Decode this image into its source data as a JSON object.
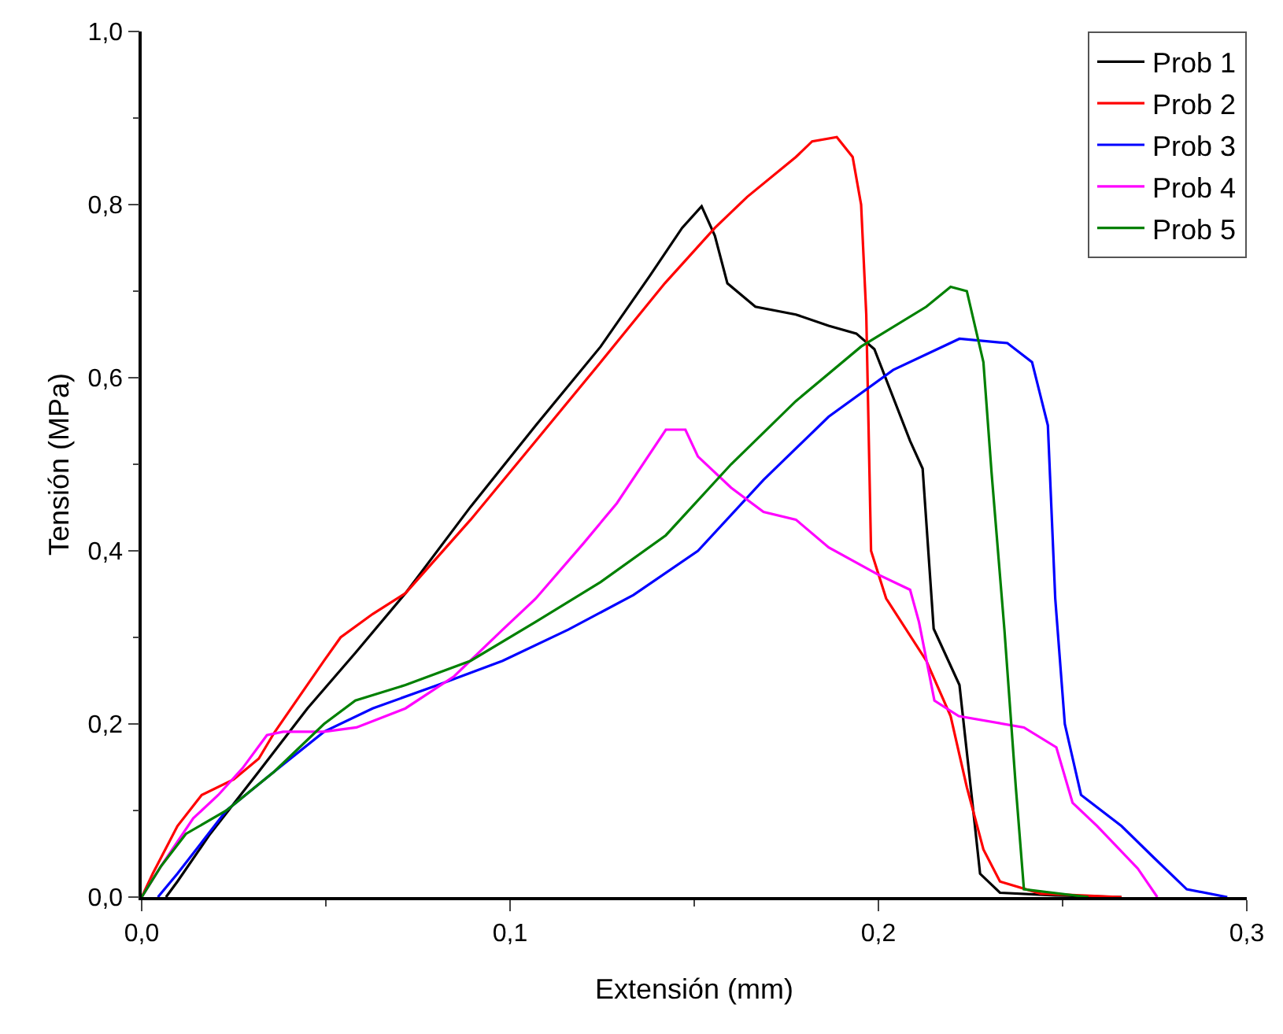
{
  "chart_data": {
    "type": "line",
    "xlabel": "Extensión (mm)",
    "ylabel": "Tensión (MPa)",
    "xlim": [
      0,
      0.3
    ],
    "ylim": [
      0,
      1
    ],
    "xticks": [
      {
        "value": 0,
        "label": "0,0"
      },
      {
        "value": 0.1,
        "label": "0,1"
      },
      {
        "value": 0.2,
        "label": "0,2"
      },
      {
        "value": 0.3,
        "label": "0,3"
      }
    ],
    "yticks": [
      {
        "value": 0,
        "label": "0,0"
      },
      {
        "value": 0.2,
        "label": "0,2"
      },
      {
        "value": 0.4,
        "label": "0,4"
      },
      {
        "value": 0.6,
        "label": "0,6"
      },
      {
        "value": 0.8,
        "label": "0,8"
      },
      {
        "value": 1,
        "label": "1,0"
      }
    ],
    "grid": false,
    "legend": "top right",
    "marker": "none",
    "line_style": "solid",
    "series": [
      {
        "name": "Prob 1",
        "color": "#000000",
        "x": [
          0.0066,
          0.0097,
          0.0186,
          0.0318,
          0.045,
          0.058,
          0.0716,
          0.0893,
          0.107,
          0.1246,
          0.138,
          0.1467,
          0.152,
          0.1556,
          0.159,
          0.1666,
          0.1776,
          0.1865,
          0.194,
          0.1989,
          0.2086,
          0.212,
          0.215,
          0.222,
          0.226,
          0.2276,
          0.233,
          0.248,
          0.266
        ],
        "values": [
          0,
          0.018,
          0.073,
          0.145,
          0.218,
          0.282,
          0.351,
          0.451,
          0.545,
          0.636,
          0.718,
          0.773,
          0.798,
          0.764,
          0.709,
          0.682,
          0.673,
          0.66,
          0.651,
          0.633,
          0.527,
          0.495,
          0.31,
          0.245,
          0.09,
          0.027,
          0.005,
          0.002,
          0
        ]
      },
      {
        "name": "Prob 2",
        "color": "#ff0000",
        "x": [
          0,
          0.003,
          0.0097,
          0.0163,
          0.025,
          0.0318,
          0.036,
          0.0495,
          0.054,
          0.0627,
          0.0716,
          0.0893,
          0.107,
          0.1246,
          0.142,
          0.1556,
          0.1644,
          0.1776,
          0.182,
          0.1887,
          0.193,
          0.1953,
          0.1967,
          0.198,
          0.2021,
          0.213,
          0.2196,
          0.224,
          0.2285,
          0.233,
          0.244,
          0.266
        ],
        "values": [
          0,
          0.027,
          0.082,
          0.118,
          0.136,
          0.16,
          0.19,
          0.273,
          0.3,
          0.327,
          0.351,
          0.436,
          0.527,
          0.618,
          0.709,
          0.773,
          0.809,
          0.855,
          0.873,
          0.878,
          0.855,
          0.8,
          0.673,
          0.4,
          0.345,
          0.273,
          0.209,
          0.127,
          0.055,
          0.018,
          0.004,
          0
        ]
      },
      {
        "name": "Prob 3",
        "color": "#0000ff",
        "x": [
          0.0044,
          0.0097,
          0.023,
          0.036,
          0.0495,
          0.0627,
          0.0804,
          0.098,
          0.1158,
          0.1335,
          0.151,
          0.1688,
          0.1865,
          0.204,
          0.222,
          0.235,
          0.2417,
          0.246,
          0.248,
          0.2506,
          0.255,
          0.266,
          0.2749,
          0.2837,
          0.2947
        ],
        "values": [
          0,
          0.027,
          0.1,
          0.145,
          0.191,
          0.218,
          0.245,
          0.273,
          0.309,
          0.349,
          0.4,
          0.482,
          0.555,
          0.609,
          0.645,
          0.64,
          0.618,
          0.545,
          0.345,
          0.2,
          0.118,
          0.082,
          0.045,
          0.009,
          0
        ]
      },
      {
        "name": "Prob 4",
        "color": "#ff00ff",
        "x": [
          0,
          0.0053,
          0.014,
          0.0208,
          0.0274,
          0.034,
          0.0384,
          0.0495,
          0.0583,
          0.0716,
          0.0848,
          0.098,
          0.107,
          0.12,
          0.129,
          0.1423,
          0.1476,
          0.151,
          0.16,
          0.1688,
          0.1776,
          0.1865,
          0.1997,
          0.2086,
          0.211,
          0.2152,
          0.2218,
          0.2395,
          0.2483,
          0.2527,
          0.2594,
          0.2704,
          0.2757
        ],
        "values": [
          0,
          0.036,
          0.091,
          0.118,
          0.149,
          0.187,
          0.191,
          0.191,
          0.196,
          0.218,
          0.255,
          0.309,
          0.345,
          0.409,
          0.455,
          0.54,
          0.54,
          0.509,
          0.473,
          0.445,
          0.436,
          0.404,
          0.373,
          0.355,
          0.318,
          0.227,
          0.209,
          0.196,
          0.173,
          0.109,
          0.082,
          0.033,
          0
        ]
      },
      {
        "name": "Prob 5",
        "color": "#008000",
        "x": [
          0,
          0.0053,
          0.012,
          0.023,
          0.036,
          0.0495,
          0.058,
          0.0716,
          0.0893,
          0.107,
          0.1246,
          0.1423,
          0.16,
          0.1776,
          0.1953,
          0.213,
          0.2196,
          0.224,
          0.2285,
          0.2307,
          0.2342,
          0.2373,
          0.2395,
          0.257
        ],
        "values": [
          0,
          0.036,
          0.073,
          0.1,
          0.145,
          0.2,
          0.227,
          0.245,
          0.273,
          0.318,
          0.364,
          0.418,
          0.5,
          0.573,
          0.636,
          0.682,
          0.705,
          0.7,
          0.618,
          0.491,
          0.309,
          0.127,
          0.009,
          0
        ]
      }
    ]
  }
}
